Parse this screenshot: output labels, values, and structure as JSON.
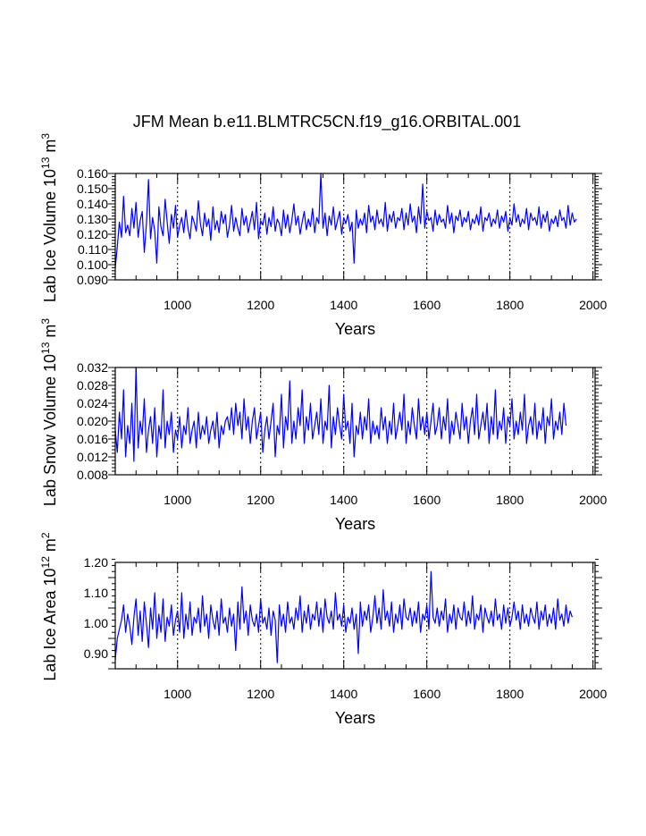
{
  "title": "JFM Mean b.e11.BLMTRC5CN.f19_g16.ORBITAL.001",
  "colors": {
    "series": "#0000ff",
    "axis": "#000000",
    "grid": "#000000"
  },
  "chart_data": [
    {
      "type": "line",
      "title": "JFM Mean b.e11.BLMTRC5CN.f19_g16.ORBITAL.001",
      "xlabel": "Years",
      "ylabel": {
        "main": "Lab Ice Volume 10",
        "exp": "13",
        "unit": " m",
        "unit_exp": "3"
      },
      "xlim": [
        850,
        2005
      ],
      "ylim": [
        0.09,
        0.16
      ],
      "xticks": [
        1000,
        1200,
        1400,
        1600,
        1800,
        2000
      ],
      "xtick_labels": [
        "1000",
        "1200",
        "1400",
        "1600",
        "1800",
        "2000"
      ],
      "yticks": [
        0.09,
        0.1,
        0.11,
        0.12,
        0.13,
        0.14,
        0.15,
        0.16
      ],
      "ytick_labels": [
        "0.090",
        "0.100",
        "0.110",
        "0.120",
        "0.130",
        "0.140",
        "0.150",
        "0.160"
      ],
      "grid_x": true,
      "series": [
        {
          "name": "Lab Ice Volume",
          "x_start": 850,
          "x_step": 5,
          "values": [
            0.098,
            0.112,
            0.128,
            0.118,
            0.145,
            0.121,
            0.126,
            0.119,
            0.137,
            0.124,
            0.141,
            0.118,
            0.129,
            0.135,
            0.108,
            0.127,
            0.156,
            0.117,
            0.131,
            0.122,
            0.101,
            0.138,
            0.125,
            0.119,
            0.143,
            0.128,
            0.114,
            0.133,
            0.124,
            0.139,
            0.118,
            0.126,
            0.131,
            0.121,
            0.136,
            0.124,
            0.117,
            0.132,
            0.128,
            0.122,
            0.142,
            0.127,
            0.119,
            0.134,
            0.125,
            0.13,
            0.116,
            0.138,
            0.123,
            0.129,
            0.121,
            0.135,
            0.127,
            0.133,
            0.118,
            0.126,
            0.139,
            0.122,
            0.131,
            0.124,
            0.119,
            0.137,
            0.126,
            0.132,
            0.121,
            0.128,
            0.135,
            0.123,
            0.141,
            0.117,
            0.129,
            0.126,
            0.134,
            0.12,
            0.131,
            0.125,
            0.138,
            0.122,
            0.13,
            0.127,
            0.119,
            0.136,
            0.124,
            0.133,
            0.121,
            0.129,
            0.14,
            0.126,
            0.132,
            0.12,
            0.128,
            0.135,
            0.123,
            0.13,
            0.125,
            0.137,
            0.121,
            0.131,
            0.127,
            0.16,
            0.124,
            0.134,
            0.119,
            0.132,
            0.126,
            0.138,
            0.123,
            0.129,
            0.135,
            0.12,
            0.131,
            0.127,
            0.133,
            0.122,
            0.128,
            0.101,
            0.136,
            0.124,
            0.13,
            0.126,
            0.134,
            0.121,
            0.139,
            0.128,
            0.132,
            0.123,
            0.136,
            0.127,
            0.13,
            0.125,
            0.141,
            0.122,
            0.133,
            0.128,
            0.135,
            0.124,
            0.131,
            0.129,
            0.137,
            0.123,
            0.134,
            0.126,
            0.14,
            0.128,
            0.132,
            0.121,
            0.138,
            0.127,
            0.153,
            0.124,
            0.135,
            0.129,
            0.131,
            0.122,
            0.136,
            0.126,
            0.133,
            0.128,
            0.13,
            0.124,
            0.139,
            0.127,
            0.134,
            0.121,
            0.132,
            0.129,
            0.136,
            0.125,
            0.131,
            0.128,
            0.135,
            0.123,
            0.13,
            0.127,
            0.133,
            0.126,
            0.138,
            0.122,
            0.131,
            0.129,
            0.134,
            0.125,
            0.13,
            0.127,
            0.136,
            0.124,
            0.132,
            0.128,
            0.135,
            0.122,
            0.131,
            0.126,
            0.14,
            0.128,
            0.133,
            0.125,
            0.13,
            0.127,
            0.137,
            0.123,
            0.134,
            0.129,
            0.131,
            0.126,
            0.138,
            0.124,
            0.133,
            0.128,
            0.135,
            0.122,
            0.13,
            0.127,
            0.132,
            0.125,
            0.136,
            0.129,
            0.131,
            0.124,
            0.139,
            0.126,
            0.134,
            0.128,
            0.13
          ]
        }
      ]
    },
    {
      "type": "line",
      "xlabel": "Years",
      "ylabel": {
        "main": "Lab Snow Volume 10",
        "exp": "13",
        "unit": " m",
        "unit_exp": "3"
      },
      "xlim": [
        850,
        2005
      ],
      "ylim": [
        0.008,
        0.032
      ],
      "xticks": [
        1000,
        1200,
        1400,
        1600,
        1800,
        2000
      ],
      "xtick_labels": [
        "1000",
        "1200",
        "1400",
        "1600",
        "1800",
        "2000"
      ],
      "yticks": [
        0.008,
        0.012,
        0.016,
        0.02,
        0.024,
        0.028,
        0.032
      ],
      "ytick_labels": [
        "0.008",
        "0.012",
        "0.016",
        "0.020",
        "0.024",
        "0.028",
        "0.032"
      ],
      "grid_x": true,
      "series": [
        {
          "name": "Lab Snow Volume",
          "x_start": 850,
          "x_step": 5,
          "values": [
            0.018,
            0.013,
            0.022,
            0.016,
            0.027,
            0.012,
            0.019,
            0.015,
            0.024,
            0.011,
            0.032,
            0.014,
            0.02,
            0.017,
            0.025,
            0.013,
            0.018,
            0.021,
            0.015,
            0.023,
            0.012,
            0.019,
            0.016,
            0.027,
            0.014,
            0.02,
            0.017,
            0.022,
            0.013,
            0.018,
            0.016,
            0.021,
            0.014,
            0.019,
            0.017,
            0.023,
            0.015,
            0.018,
            0.02,
            0.014,
            0.022,
            0.016,
            0.019,
            0.017,
            0.021,
            0.015,
            0.018,
            0.02,
            0.016,
            0.022,
            0.014,
            0.019,
            0.017,
            0.02,
            0.021,
            0.018,
            0.023,
            0.017,
            0.024,
            0.019,
            0.022,
            0.016,
            0.025,
            0.018,
            0.021,
            0.015,
            0.02,
            0.023,
            0.016,
            0.019,
            0.022,
            0.013,
            0.018,
            0.021,
            0.016,
            0.02,
            0.024,
            0.012,
            0.019,
            0.017,
            0.026,
            0.014,
            0.021,
            0.018,
            0.029,
            0.015,
            0.02,
            0.016,
            0.023,
            0.019,
            0.027,
            0.015,
            0.021,
            0.018,
            0.024,
            0.016,
            0.019,
            0.022,
            0.017,
            0.025,
            0.015,
            0.02,
            0.018,
            0.028,
            0.014,
            0.021,
            0.017,
            0.023,
            0.019,
            0.016,
            0.026,
            0.018,
            0.02,
            0.015,
            0.024,
            0.012,
            0.019,
            0.017,
            0.022,
            0.016,
            0.021,
            0.018,
            0.025,
            0.015,
            0.02,
            0.017,
            0.019,
            0.016,
            0.023,
            0.018,
            0.021,
            0.015,
            0.02,
            0.017,
            0.024,
            0.016,
            0.019,
            0.022,
            0.018,
            0.026,
            0.015,
            0.02,
            0.017,
            0.023,
            0.019,
            0.016,
            0.025,
            0.018,
            0.021,
            0.017,
            0.022,
            0.016,
            0.02,
            0.024,
            0.017,
            0.019,
            0.023,
            0.016,
            0.021,
            0.018,
            0.025,
            0.015,
            0.02,
            0.017,
            0.022,
            0.019,
            0.016,
            0.024,
            0.018,
            0.021,
            0.015,
            0.02,
            0.023,
            0.017,
            0.026,
            0.016,
            0.019,
            0.022,
            0.018,
            0.024,
            0.015,
            0.021,
            0.017,
            0.027,
            0.016,
            0.02,
            0.018,
            0.023,
            0.015,
            0.021,
            0.019,
            0.025,
            0.016,
            0.02,
            0.017,
            0.022,
            0.018,
            0.026,
            0.015,
            0.019,
            0.021,
            0.017,
            0.024,
            0.016,
            0.02,
            0.018,
            0.023,
            0.015,
            0.021,
            0.019,
            0.025,
            0.016,
            0.02,
            0.018,
            0.022,
            0.017,
            0.024,
            0.019
          ]
        }
      ]
    },
    {
      "type": "line",
      "xlabel": "Years",
      "ylabel": {
        "main": "Lab Ice Area 10",
        "exp": "12",
        "unit": " m",
        "unit_exp": "2"
      },
      "xlim": [
        850,
        2005
      ],
      "ylim": [
        0.85,
        1.2
      ],
      "xticks": [
        1000,
        1200,
        1400,
        1600,
        1800,
        2000
      ],
      "xtick_labels": [
        "1000",
        "1200",
        "1400",
        "1600",
        "1800",
        "2000"
      ],
      "yticks": [
        0.9,
        1.0,
        1.1,
        1.2
      ],
      "ytick_labels": [
        "0.90",
        "1.00",
        "1.10",
        "1.20"
      ],
      "grid_x": true,
      "series": [
        {
          "name": "Lab Ice Area",
          "x_start": 850,
          "x_step": 5,
          "values": [
            0.88,
            0.95,
            0.98,
            1.01,
            1.06,
            0.97,
            1.03,
            0.99,
            0.93,
            1.02,
            1.08,
            0.96,
            1.04,
            0.94,
            1.07,
            1.0,
            0.92,
            1.05,
            0.98,
            1.1,
            0.95,
            1.03,
            0.97,
            1.08,
            0.94,
            1.02,
            0.99,
            1.06,
            0.96,
            1.01,
            1.04,
            0.97,
            1.1,
            0.95,
            1.03,
            0.98,
            1.07,
            0.96,
            1.02,
            1.0,
            1.05,
            0.97,
            1.09,
            0.99,
            1.03,
            0.95,
            1.06,
            1.01,
            0.98,
            1.04,
            0.96,
            1.08,
            1.0,
            1.02,
            0.97,
            1.05,
            0.99,
            1.03,
            0.91,
            1.07,
            0.98,
            1.12,
            1.0,
            1.04,
            0.96,
            1.06,
            1.01,
            0.99,
            1.03,
            0.97,
            1.08,
            1.0,
            1.02,
            0.98,
            1.05,
            0.96,
            1.04,
            1.01,
            0.87,
            1.06,
            0.99,
            1.03,
            0.97,
            1.07,
            1.0,
            1.02,
            0.98,
            1.05,
            1.01,
            1.09,
            0.97,
            1.04,
            1.0,
            1.06,
            0.98,
            1.03,
            1.01,
            1.07,
            0.99,
            1.05,
            0.97,
            1.08,
            1.02,
            1.0,
            1.04,
            0.98,
            1.1,
            1.01,
            1.03,
            0.99,
            1.06,
            0.97,
            1.02,
            1.0,
            1.05,
            0.98,
            1.03,
            0.9,
            1.07,
            0.99,
            1.04,
            1.01,
            1.06,
            0.97,
            1.02,
            1.09,
            1.0,
            1.05,
            0.98,
            1.11,
            1.01,
            1.04,
            0.99,
            1.07,
            0.97,
            1.03,
            1.0,
            1.06,
            0.98,
            1.08,
            1.02,
            1.01,
            1.05,
            0.99,
            1.04,
            1.0,
            1.07,
            0.97,
            1.03,
            1.01,
            1.06,
            0.98,
            1.17,
            1.02,
            1.0,
            1.05,
            0.99,
            1.04,
            1.01,
            1.08,
            0.97,
            1.03,
            1.0,
            1.06,
            0.98,
            1.05,
            1.02,
            1.01,
            1.07,
            0.99,
            1.04,
            1.0,
            1.09,
            0.98,
            1.03,
            1.01,
            1.06,
            0.97,
            1.05,
            1.02,
            1.0,
            1.04,
            0.99,
            1.08,
            1.01,
            1.03,
            0.98,
            1.06,
            1.0,
            1.05,
            0.99,
            1.02,
            1.07,
            1.01,
            1.04,
            0.98,
            1.06,
            1.0,
            1.03,
            0.99,
            1.05,
            1.02,
            1.0,
            1.07,
            0.98,
            1.04,
            1.01,
            1.06,
            0.99,
            1.03,
            1.0,
            1.05,
            0.98,
            1.08,
            1.01,
            1.03,
            0.99,
            1.06,
            1.0,
            1.04,
            1.02
          ]
        }
      ]
    }
  ]
}
